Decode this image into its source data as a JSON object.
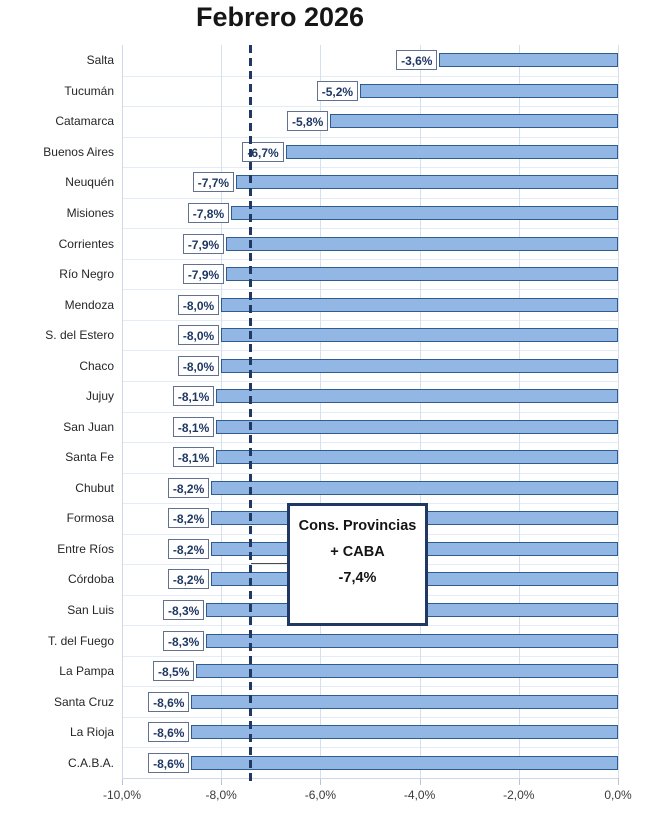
{
  "title": "Febrero 2026",
  "chart_data": {
    "type": "bar",
    "orientation": "horizontal",
    "title": "Febrero 2026",
    "categories": [
      "Salta",
      "Tucumán",
      "Catamarca",
      "Buenos Aires",
      "Neuquén",
      "Misiones",
      "Corrientes",
      "Río Negro",
      "Mendoza",
      "S. del Estero",
      "Chaco",
      "Jujuy",
      "San Juan",
      "Santa Fe",
      "Chubut",
      "Formosa",
      "Entre Ríos",
      "Córdoba",
      "San Luis",
      "T. del Fuego",
      "La Pampa",
      "Santa Cruz",
      "La Rioja",
      "C.A.B.A."
    ],
    "values": [
      -3.6,
      -5.2,
      -5.8,
      -6.7,
      -7.7,
      -7.8,
      -7.9,
      -7.9,
      -8.0,
      -8.0,
      -8.0,
      -8.1,
      -8.1,
      -8.1,
      -8.2,
      -8.2,
      -8.2,
      -8.2,
      -8.3,
      -8.3,
      -8.5,
      -8.6,
      -8.6,
      -8.6
    ],
    "value_labels": [
      "-3,6%",
      "-5,2%",
      "-5,8%",
      "-6,7%",
      "-7,7%",
      "-7,8%",
      "-7,9%",
      "-7,9%",
      "-8,0%",
      "-8,0%",
      "-8,0%",
      "-8,1%",
      "-8,1%",
      "-8,1%",
      "-8,2%",
      "-8,2%",
      "-8,2%",
      "-8,2%",
      "-8,3%",
      "-8,3%",
      "-8,5%",
      "-8,6%",
      "-8,6%",
      "-8,6%"
    ],
    "xlim": [
      -10,
      0
    ],
    "x_ticks": [
      -10,
      -8,
      -6,
      -4,
      -2,
      0
    ],
    "x_tick_labels": [
      "-10,0%",
      "-8,0%",
      "-6,0%",
      "-4,0%",
      "-2,0%",
      "0,0%"
    ],
    "grid": "on",
    "reference_line": {
      "value": -7.4,
      "style": "dashed"
    },
    "annotation": {
      "line1": "Cons. Provincias",
      "line2": "+ CABA",
      "line3": "-7,4%"
    }
  },
  "colors": {
    "bar_fill": "#93b7e4",
    "bar_border": "#2f5b8f",
    "reference_line": "#1f3864",
    "annotation_border": "#1f3864",
    "value_label_text": "#1f3864"
  }
}
